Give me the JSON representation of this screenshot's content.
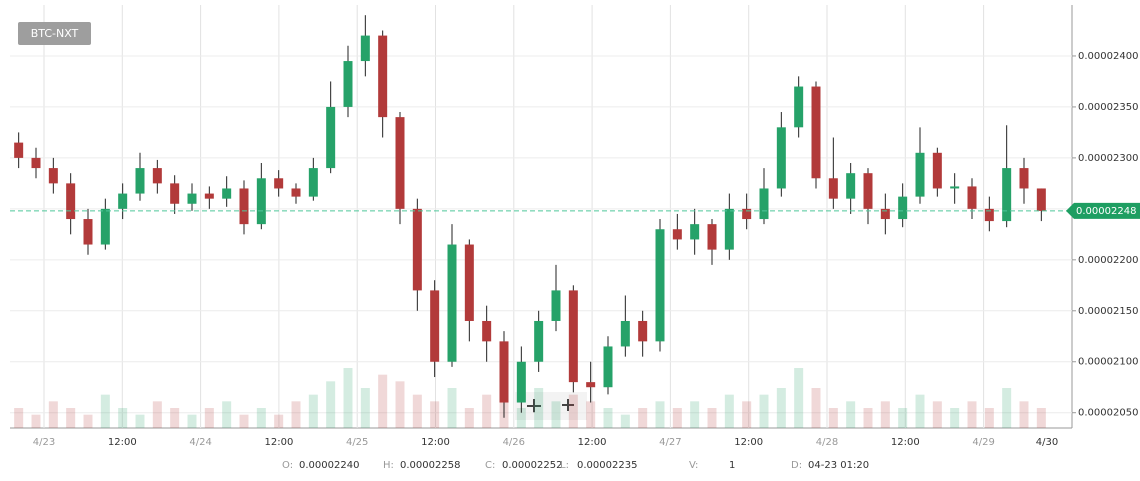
{
  "symbol_button": "BTC-NXT",
  "chart_data": {
    "type": "candlestick",
    "open": [
      2.315e-05,
      2.3e-05,
      2.29e-05,
      2.275e-05,
      2.24e-05,
      2.215e-05,
      2.25e-05,
      2.265e-05,
      2.29e-05,
      2.275e-05,
      2.255e-05,
      2.265e-05,
      2.26e-05,
      2.27e-05,
      2.235e-05,
      2.28e-05,
      2.27e-05,
      2.262e-05,
      2.29e-05,
      2.35e-05,
      2.395e-05,
      2.42e-05,
      2.34e-05,
      2.25e-05,
      2.17e-05,
      2.1e-05,
      2.215e-05,
      2.14e-05,
      2.12e-05,
      2.06e-05,
      2.1e-05,
      2.14e-05,
      2.17e-05,
      2.08e-05,
      2.075e-05,
      2.115e-05,
      2.14e-05,
      2.12e-05,
      2.23e-05,
      2.22e-05,
      2.235e-05,
      2.21e-05,
      2.25e-05,
      2.24e-05,
      2.27e-05,
      2.33e-05,
      2.37e-05,
      2.28e-05,
      2.26e-05,
      2.285e-05,
      2.25e-05,
      2.24e-05,
      2.262e-05,
      2.305e-05,
      2.27e-05,
      2.272e-05,
      2.25e-05,
      2.238e-05,
      2.29e-05,
      2.27e-05
    ],
    "high": [
      2.325e-05,
      2.31e-05,
      2.3e-05,
      2.285e-05,
      2.25e-05,
      2.26e-05,
      2.275e-05,
      2.305e-05,
      2.298e-05,
      2.283e-05,
      2.275e-05,
      2.272e-05,
      2.282e-05,
      2.278e-05,
      2.295e-05,
      2.288e-05,
      2.275e-05,
      2.3e-05,
      2.375e-05,
      2.41e-05,
      2.44e-05,
      2.425e-05,
      2.345e-05,
      2.26e-05,
      2.18e-05,
      2.235e-05,
      2.22e-05,
      2.155e-05,
      2.13e-05,
      2.115e-05,
      2.15e-05,
      2.195e-05,
      2.175e-05,
      2.1e-05,
      2.125e-05,
      2.165e-05,
      2.15e-05,
      2.24e-05,
      2.245e-05,
      2.25e-05,
      2.24e-05,
      2.265e-05,
      2.265e-05,
      2.29e-05,
      2.345e-05,
      2.38e-05,
      2.375e-05,
      2.32e-05,
      2.295e-05,
      2.29e-05,
      2.265e-05,
      2.275e-05,
      2.33e-05,
      2.31e-05,
      2.285e-05,
      2.28e-05,
      2.262e-05,
      2.332e-05,
      2.3e-05,
      2.27e-05
    ],
    "low": [
      2.29e-05,
      2.28e-05,
      2.265e-05,
      2.225e-05,
      2.205e-05,
      2.21e-05,
      2.24e-05,
      2.258e-05,
      2.265e-05,
      2.245e-05,
      2.248e-05,
      2.25e-05,
      2.252e-05,
      2.225e-05,
      2.23e-05,
      2.262e-05,
      2.255e-05,
      2.258e-05,
      2.285e-05,
      2.34e-05,
      2.38e-05,
      2.32e-05,
      2.235e-05,
      2.15e-05,
      2.085e-05,
      2.095e-05,
      2.12e-05,
      2.1e-05,
      2.045e-05,
      2.05e-05,
      2.09e-05,
      2.13e-05,
      2.07e-05,
      2.06e-05,
      2.068e-05,
      2.105e-05,
      2.105e-05,
      2.11e-05,
      2.21e-05,
      2.205e-05,
      2.195e-05,
      2.2e-05,
      2.23e-05,
      2.235e-05,
      2.262e-05,
      2.32e-05,
      2.27e-05,
      2.25e-05,
      2.245e-05,
      2.235e-05,
      2.225e-05,
      2.232e-05,
      2.255e-05,
      2.262e-05,
      2.255e-05,
      2.24e-05,
      2.228e-05,
      2.232e-05,
      2.255e-05,
      2.238e-05
    ],
    "close": [
      2.3e-05,
      2.29e-05,
      2.275e-05,
      2.24e-05,
      2.215e-05,
      2.25e-05,
      2.265e-05,
      2.29e-05,
      2.275e-05,
      2.255e-05,
      2.265e-05,
      2.26e-05,
      2.27e-05,
      2.235e-05,
      2.28e-05,
      2.27e-05,
      2.262e-05,
      2.29e-05,
      2.35e-05,
      2.395e-05,
      2.42e-05,
      2.34e-05,
      2.25e-05,
      2.17e-05,
      2.1e-05,
      2.215e-05,
      2.14e-05,
      2.12e-05,
      2.06e-05,
      2.1e-05,
      2.14e-05,
      2.17e-05,
      2.08e-05,
      2.075e-05,
      2.115e-05,
      2.14e-05,
      2.12e-05,
      2.23e-05,
      2.22e-05,
      2.235e-05,
      2.21e-05,
      2.25e-05,
      2.24e-05,
      2.27e-05,
      2.33e-05,
      2.37e-05,
      2.28e-05,
      2.26e-05,
      2.285e-05,
      2.25e-05,
      2.24e-05,
      2.262e-05,
      2.305e-05,
      2.27e-05,
      2.272e-05,
      2.25e-05,
      2.238e-05,
      2.29e-05,
      2.27e-05,
      2.248e-05
    ],
    "volume": [
      3,
      2,
      4,
      3,
      2,
      5,
      3,
      2,
      4,
      3,
      2,
      3,
      4,
      2,
      3,
      2,
      4,
      5,
      7,
      9,
      6,
      8,
      7,
      5,
      4,
      6,
      3,
      5,
      4,
      3,
      6,
      4,
      5,
      4,
      3,
      2,
      3,
      4,
      3,
      4,
      3,
      5,
      4,
      5,
      6,
      9,
      6,
      3,
      4,
      3,
      4,
      3,
      5,
      4,
      3,
      4,
      3,
      6,
      4,
      3
    ],
    "up_color": "#26a269",
    "down_color": "#b23a3a",
    "ylim": [
      2.035e-05,
      2.45e-05
    ],
    "yticks": [
      {
        "value": 2.05e-05,
        "label": "0.00002050"
      },
      {
        "value": 2.1e-05,
        "label": "0.00002100"
      },
      {
        "value": 2.15e-05,
        "label": "0.00002150"
      },
      {
        "value": 2.2e-05,
        "label": "0.00002200"
      },
      {
        "value": 2.25e-05,
        "label": "0.00002250"
      },
      {
        "value": 2.3e-05,
        "label": "0.00002300"
      },
      {
        "value": 2.35e-05,
        "label": "0.00002350"
      },
      {
        "value": 2.4e-05,
        "label": "0.00002400"
      }
    ],
    "xtick_labels": [
      "4/23",
      "12:00",
      "4/24",
      "12:00",
      "4/25",
      "12:00",
      "4/26",
      "12:00",
      "4/27",
      "12:00",
      "4/28",
      "12:00",
      "4/29",
      "4/30"
    ],
    "last_price": {
      "value": 2.248e-05,
      "label": "0.00002248"
    },
    "grid": true
  },
  "footer": [
    {
      "label": "O:",
      "value": "0.00002240"
    },
    {
      "label": "H:",
      "value": "0.00002258"
    },
    {
      "label": "C:",
      "value": "0.00002252"
    },
    {
      "label": "L:",
      "value": "0.00002235"
    },
    {
      "label": "V:",
      "value": "1"
    },
    {
      "label": "D:",
      "value": "04-23 01:20"
    }
  ]
}
